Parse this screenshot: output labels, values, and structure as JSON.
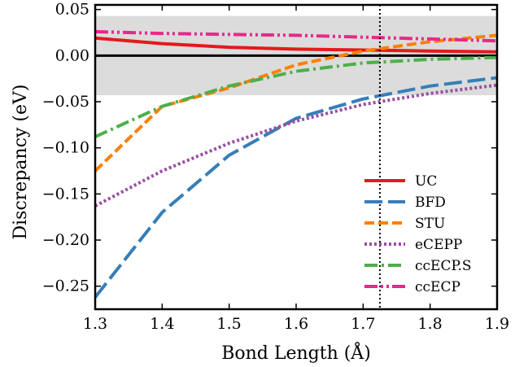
{
  "chart_data": {
    "type": "line",
    "xlabel": "Bond Length (Å)",
    "ylabel": "Discrepancy (eV)",
    "xlim": [
      1.3,
      1.9
    ],
    "ylim": [
      -0.275,
      0.055
    ],
    "x_ticks": [
      1.3,
      1.4,
      1.5,
      1.6,
      1.7,
      1.8,
      1.9
    ],
    "x_tick_labels": [
      "1.3",
      "1.4",
      "1.5",
      "1.6",
      "1.7",
      "1.8",
      "1.9"
    ],
    "y_ticks": [
      0.05,
      0.0,
      -0.05,
      -0.1,
      -0.15,
      -0.2,
      -0.25
    ],
    "y_tick_labels": [
      "0.05",
      "0.00",
      "−0.05",
      "−0.10",
      "−0.15",
      "−0.20",
      "−0.25"
    ],
    "shaded_band": [
      -0.043,
      0.043
    ],
    "shaded_band_color": "#dcdcdc",
    "zero_line": 0.0,
    "vertical_reference_x": 1.725,
    "legend_position": "lower-right",
    "grid": false,
    "series": [
      {
        "name": "UC",
        "color": "#e41a1c",
        "dash": "solid",
        "width": 4,
        "x": [
          1.3,
          1.4,
          1.5,
          1.6,
          1.7,
          1.8,
          1.9
        ],
        "y": [
          0.019,
          0.013,
          0.009,
          0.007,
          0.006,
          0.005,
          0.004
        ]
      },
      {
        "name": "BFD",
        "color": "#377eb8",
        "dash": "longdash",
        "width": 4,
        "x": [
          1.3,
          1.4,
          1.5,
          1.6,
          1.7,
          1.8,
          1.9
        ],
        "y": [
          -0.262,
          -0.17,
          -0.108,
          -0.068,
          -0.047,
          -0.033,
          -0.024
        ]
      },
      {
        "name": "STU",
        "color": "#ff7f00",
        "dash": "dash",
        "width": 4,
        "x": [
          1.3,
          1.4,
          1.5,
          1.6,
          1.7,
          1.8,
          1.9
        ],
        "y": [
          -0.125,
          -0.055,
          -0.035,
          -0.01,
          0.005,
          0.015,
          0.022
        ]
      },
      {
        "name": "eCEPP",
        "color": "#984ea3",
        "dash": "dot",
        "width": 4,
        "x": [
          1.3,
          1.4,
          1.5,
          1.6,
          1.7,
          1.8,
          1.9
        ],
        "y": [
          -0.163,
          -0.125,
          -0.095,
          -0.071,
          -0.053,
          -0.041,
          -0.032
        ]
      },
      {
        "name": "ccECP.S",
        "color": "#4daf4a",
        "dash": "dashdot",
        "width": 4,
        "x": [
          1.3,
          1.4,
          1.5,
          1.6,
          1.7,
          1.8,
          1.9
        ],
        "y": [
          -0.088,
          -0.055,
          -0.033,
          -0.017,
          -0.008,
          -0.004,
          -0.002
        ]
      },
      {
        "name": "ccECP",
        "color": "#e7298a",
        "dash": "dashdotdot",
        "width": 4,
        "x": [
          1.3,
          1.4,
          1.5,
          1.6,
          1.7,
          1.8,
          1.9
        ],
        "y": [
          0.026,
          0.024,
          0.023,
          0.022,
          0.02,
          0.018,
          0.016
        ]
      }
    ]
  }
}
